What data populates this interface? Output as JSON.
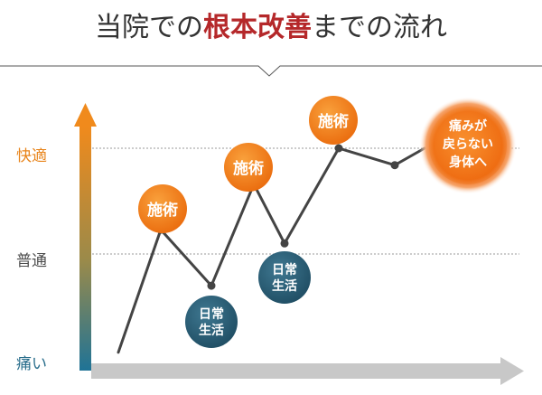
{
  "title": {
    "before": "当院での",
    "accent": "根本改善",
    "after": "までの流れ"
  },
  "colors": {
    "title_text": "#333333",
    "title_accent": "#b5282a",
    "axis_top": "#f08a1c",
    "axis_bottom": "#1f7396",
    "line": "#444444",
    "grid": "#9a9a9a",
    "treatment_bubble": "#f07d17",
    "daily_bubble": "#2f5f74",
    "goal_bubble": "#f26a17",
    "label_comfort": "#e8841b",
    "label_normal": "#4d4d4d",
    "label_pain": "#2a6e8c",
    "x_arrow": "#c8c8c8"
  },
  "chart_data": {
    "type": "line",
    "title": "当院での根本改善までの流れ",
    "xlabel": "",
    "ylabel": "",
    "y_levels": [
      "痛い",
      "普通",
      "快適"
    ],
    "ylim": [
      0,
      2.1
    ],
    "grid": "dashed lines at 普通 and 快適",
    "x": [
      0,
      1,
      2,
      3,
      4,
      5,
      6,
      7
    ],
    "series": [
      {
        "values": [
          0.07,
          1.23,
          0.7,
          1.66,
          1.1,
          2.0,
          1.84,
          2.0
        ]
      }
    ],
    "annotations": [
      {
        "label": "施術",
        "x": 1,
        "kind": "treatment"
      },
      {
        "label": "日常生活",
        "x": 2,
        "kind": "daily"
      },
      {
        "label": "施術",
        "x": 3,
        "kind": "treatment"
      },
      {
        "label": "日常生活",
        "x": 4,
        "kind": "daily"
      },
      {
        "label": "施術",
        "x": 5,
        "kind": "treatment"
      },
      {
        "label": "痛みが戻らない身体へ",
        "x": 7,
        "kind": "goal"
      }
    ]
  },
  "labels": {
    "comfort": "快適",
    "normal": "普通",
    "pain": "痛い"
  },
  "bubbles": {
    "treatment_1": "施術",
    "treatment_2": "施術",
    "treatment_3": "施術",
    "daily_1_line1": "日常",
    "daily_1_line2": "生活",
    "daily_2_line1": "日常",
    "daily_2_line2": "生活",
    "goal_line1": "痛みが",
    "goal_line2": "戻らない",
    "goal_line3": "身体へ"
  }
}
